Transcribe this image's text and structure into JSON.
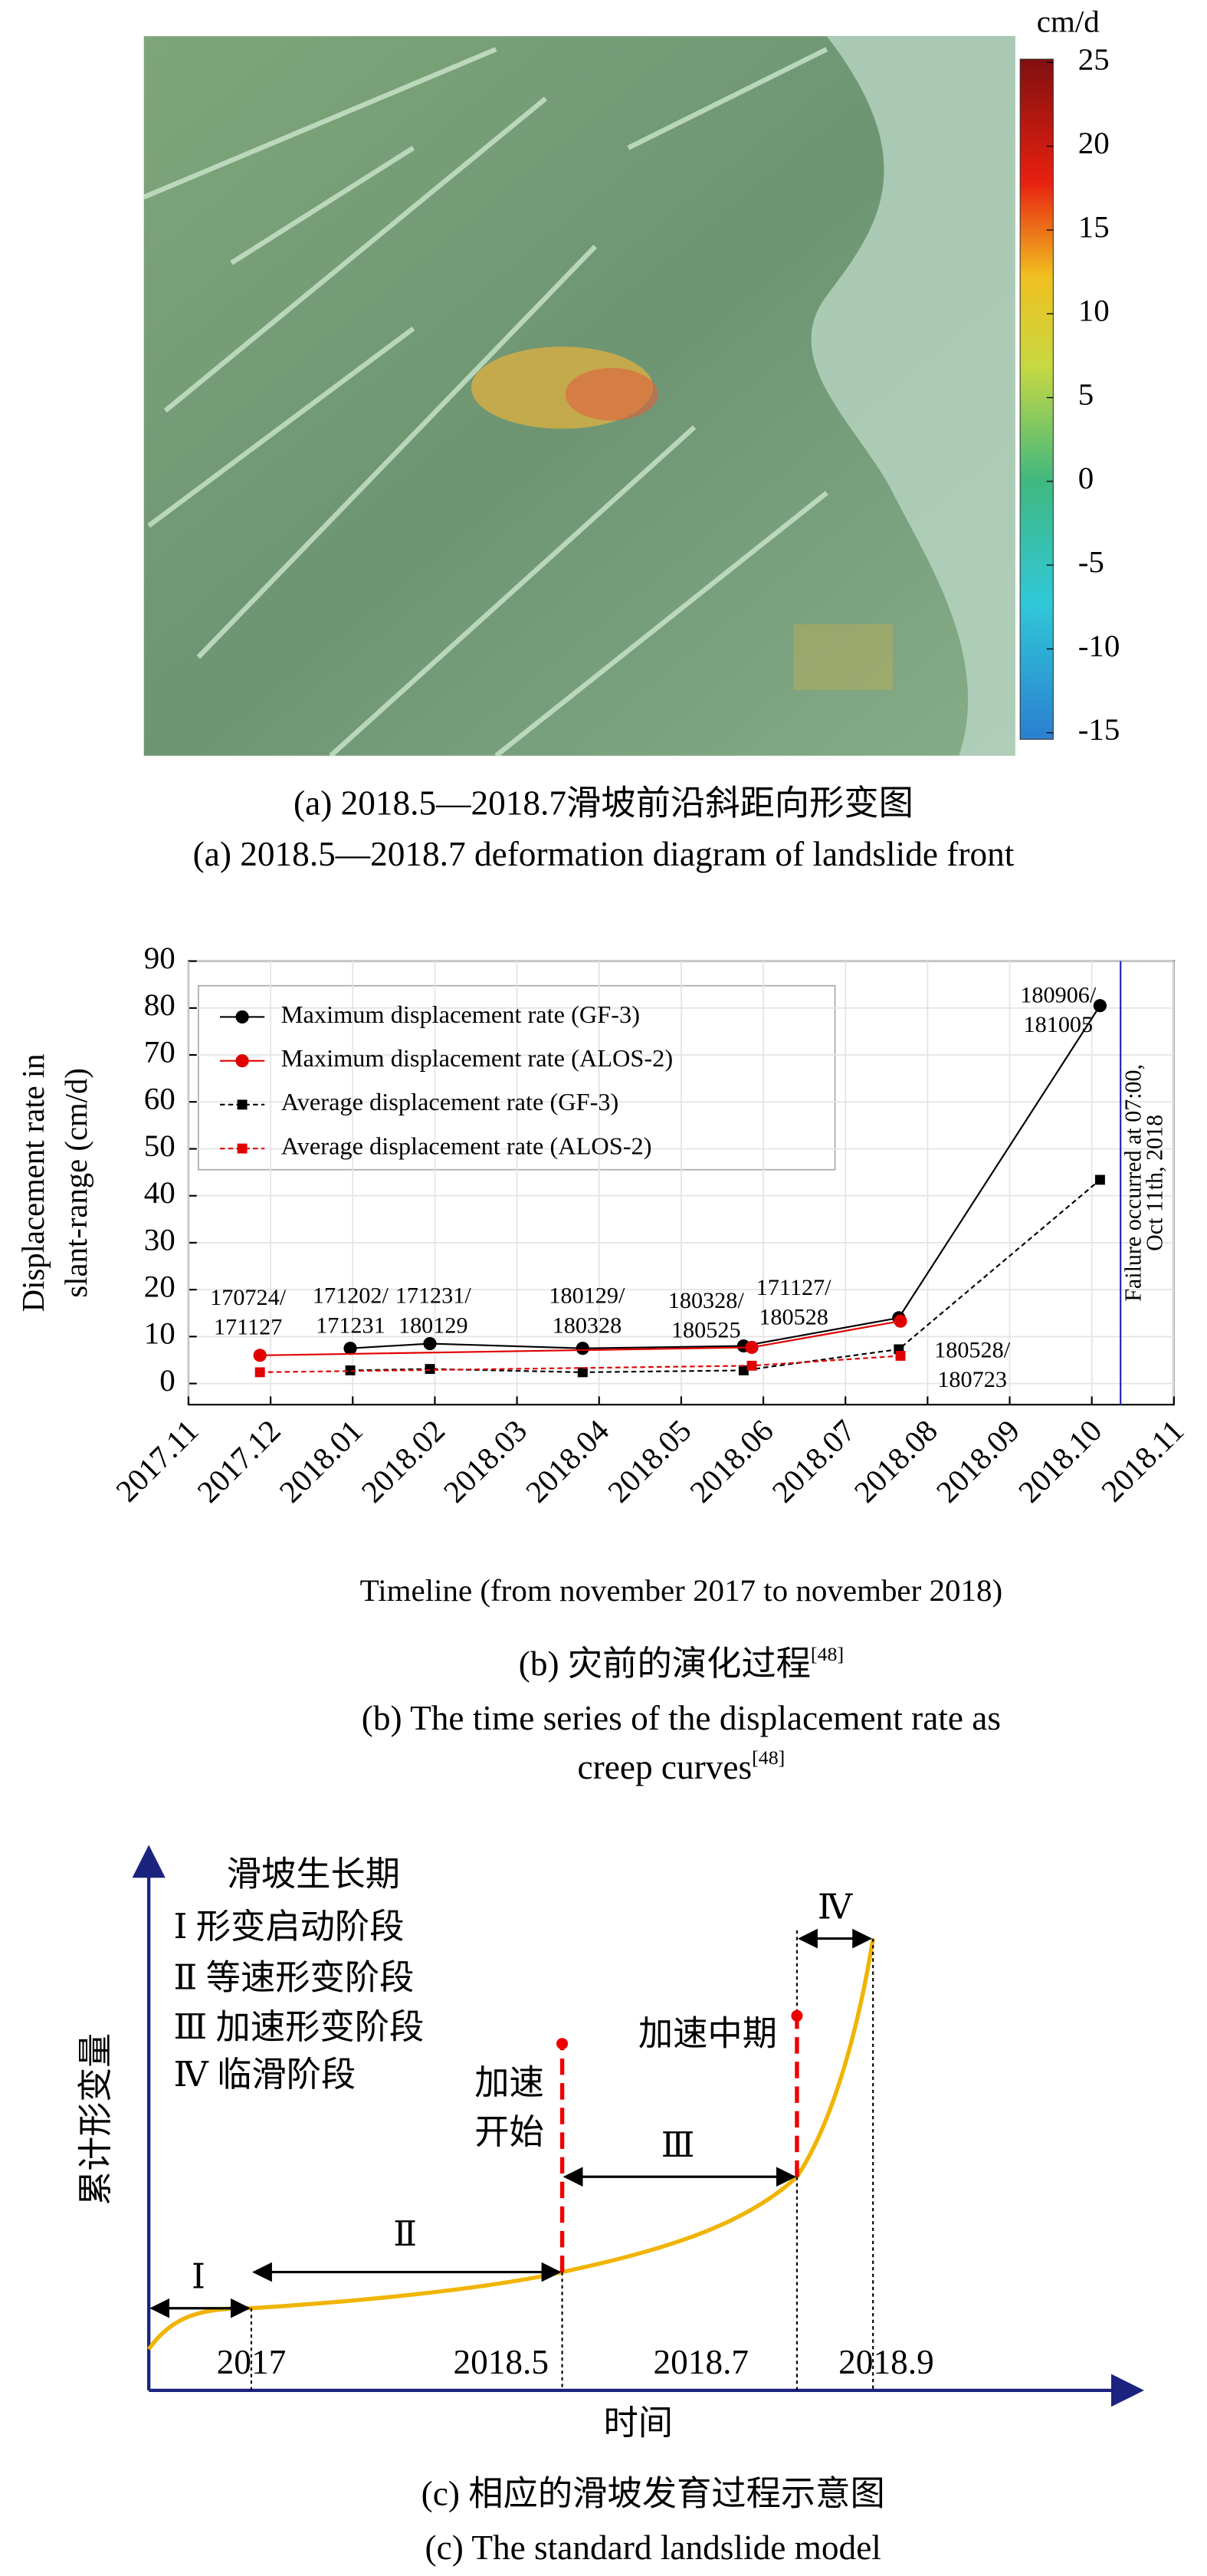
{
  "panel_a": {
    "colorbar": {
      "unit": "cm/d",
      "lim": [
        -15,
        25
      ],
      "ticks": [
        25,
        20,
        15,
        10,
        5,
        0,
        -5,
        -10,
        -15
      ]
    },
    "caption_cn": "(a) 2018.5—2018.7滑坡前沿斜距向形变图",
    "caption_en": "(a) 2018.5—2018.7 deformation diagram of landslide front"
  },
  "chart_data": {
    "type": "line",
    "ylabel": [
      "Displacement rate in",
      "slant-range (cm/d)"
    ],
    "xlabel": "Timeline (from november 2017 to november 2018)",
    "xlim": [
      0,
      12
    ],
    "xticks": [
      {
        "value": 0,
        "label": "2017.11"
      },
      {
        "value": 1,
        "label": "2017.12"
      },
      {
        "value": 2,
        "label": "2018.01"
      },
      {
        "value": 3,
        "label": "2018.02"
      },
      {
        "value": 4,
        "label": "2018.03"
      },
      {
        "value": 5,
        "label": "2018.04"
      },
      {
        "value": 6,
        "label": "2018.05"
      },
      {
        "value": 7,
        "label": "2018.06"
      },
      {
        "value": 8,
        "label": "2018.07"
      },
      {
        "value": 9,
        "label": "2018.08"
      },
      {
        "value": 10,
        "label": "2018.09"
      },
      {
        "value": 11,
        "label": "2018.10"
      },
      {
        "value": 12,
        "label": "2018.11"
      }
    ],
    "ylim": [
      -4.5,
      90
    ],
    "yticks": [
      0,
      10,
      20,
      30,
      40,
      50,
      60,
      70,
      80,
      90
    ],
    "grid": true,
    "legend": "upper left",
    "series": [
      {
        "name": "Maximum displacement rate (GF-3)",
        "color": "#000000",
        "marker": "circle",
        "dashed": false,
        "x": [
          1.97,
          2.94,
          4.8,
          6.76,
          8.65,
          11.1
        ],
        "values": [
          7.5,
          8.5,
          7.5,
          8,
          14,
          80.5
        ]
      },
      {
        "name": "Maximum displacement rate (ALOS-2)",
        "color": "#e00000",
        "marker": "circle",
        "dashed": false,
        "x": [
          0.87,
          6.86,
          8.67
        ],
        "values": [
          6,
          7.7,
          13.3
        ]
      },
      {
        "name": "Average displacement rate (GF-3)",
        "color": "#000000",
        "marker": "square",
        "dashed": true,
        "x": [
          1.97,
          2.94,
          4.8,
          6.76,
          8.65,
          11.1
        ],
        "values": [
          2.8,
          3.1,
          2.4,
          2.8,
          7.3,
          43.4
        ]
      },
      {
        "name": "Average displacement rate (ALOS-2)",
        "color": "#e00000",
        "marker": "square",
        "dashed": true,
        "x": [
          0.87,
          6.86,
          8.67
        ],
        "values": [
          2.4,
          3.8,
          5.9
        ]
      }
    ],
    "annotations": [
      {
        "lines": [
          "170724/",
          "171127"
        ],
        "color": "#e00000"
      },
      {
        "lines": [
          "171202/",
          "171231"
        ],
        "color": "#000000"
      },
      {
        "lines": [
          "171231/",
          "180129"
        ],
        "color": "#000000"
      },
      {
        "lines": [
          "180129/",
          "180328"
        ],
        "color": "#000000"
      },
      {
        "lines": [
          "180328/",
          "180525"
        ],
        "color": "#000000"
      },
      {
        "lines": [
          "171127/",
          "180528"
        ],
        "color": "#e00000"
      },
      {
        "lines": [
          "180528/",
          "180723"
        ],
        "color": "#e00000"
      },
      {
        "lines": [
          "180906/",
          "181005"
        ],
        "color": "#000000"
      }
    ],
    "failure": {
      "x": 11.35,
      "lines": [
        "Failure occurred at 07:00,",
        "Oct 11th, 2018"
      ],
      "color": "#2020c0"
    },
    "caption_cn": "(b) 灾前的演化过程",
    "caption_en": [
      "(b) The time series of the displacement rate as",
      "creep curves"
    ],
    "ref": "[48]"
  },
  "panel_c": {
    "ylabel": "累计形变量",
    "xlabel": "时间",
    "heading": "滑坡生长期",
    "stages": [
      "Ⅰ 形变启动阶段",
      "Ⅱ 等速形变阶段",
      "Ⅲ 加速形变阶段",
      "Ⅳ 临滑阶段"
    ],
    "stage_marks": [
      "Ⅰ",
      "Ⅱ",
      "Ⅲ",
      "Ⅳ"
    ],
    "times": [
      "2017",
      "2018.5",
      "2018.7",
      "2018.9"
    ],
    "accel_start": [
      "加速",
      "开始"
    ],
    "accel_mid": "加速中期",
    "caption_cn": "(c) 相应的滑坡发育过程示意图",
    "caption_en": "(c) The standard landslide model"
  }
}
